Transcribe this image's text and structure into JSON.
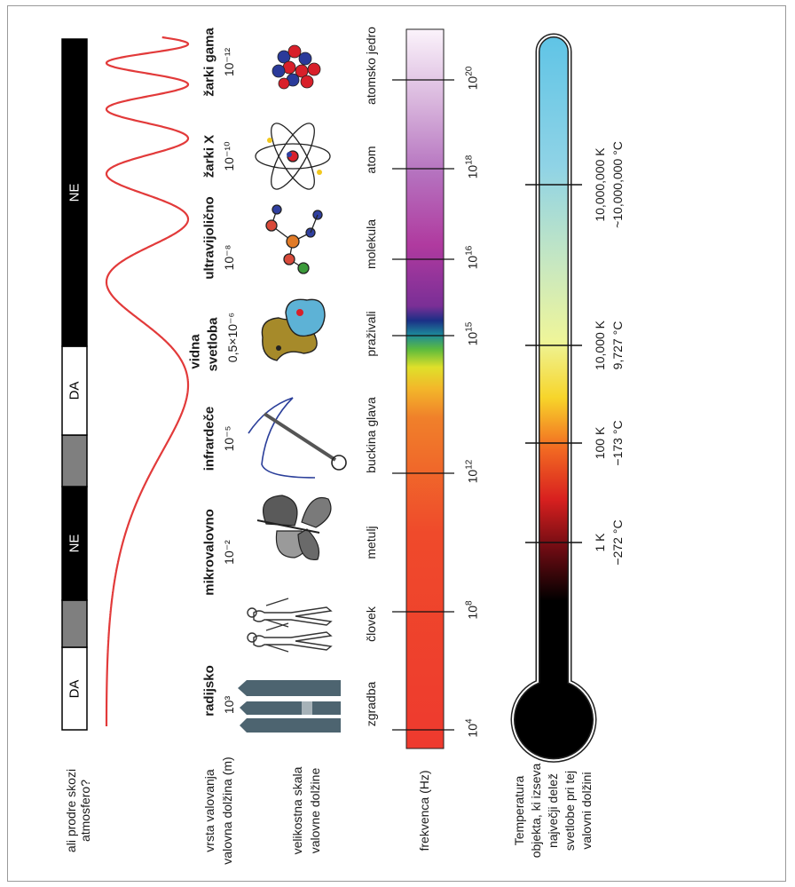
{
  "atmosphere": {
    "question": "ali prodre skozi atmosfero?",
    "segments": [
      {
        "label": "DA",
        "fill": "#ffffff",
        "text_color": "#000000"
      },
      {
        "label": "",
        "fill": "#7f7f7f",
        "text_color": "#ffffff"
      },
      {
        "label": "NE",
        "fill": "#000000",
        "text_color": "#ffffff"
      },
      {
        "label": "",
        "fill": "#7f7f7f",
        "text_color": "#ffffff"
      },
      {
        "label": "DA",
        "fill": "#ffffff",
        "text_color": "#000000"
      },
      {
        "label": "NE",
        "fill": "#000000",
        "text_color": "#ffffff"
      }
    ]
  },
  "row_labels": {
    "wave_type": "vrsta valovanja",
    "wavelength": "valovna dolžina (m)",
    "size_scale_1": "velikostna skala",
    "size_scale_2": "valovne dolžine",
    "frequency": "frekvenca (Hz)",
    "temperature_1": "Temperatura",
    "temperature_2": "objekta, ki izseva",
    "temperature_3": "največji delež",
    "temperature_4": "svetlobe pri tej",
    "temperature_5": "valovni dolžini"
  },
  "waves": [
    {
      "name": "radijsko",
      "wavelength": "10³"
    },
    {
      "name": "mikrovalovno",
      "wavelength": "10⁻²"
    },
    {
      "name": "infrardeče",
      "wavelength": "10⁻⁵"
    },
    {
      "name": "vidna",
      "name2": "svetloba",
      "wavelength": "0,5×10⁻⁶"
    },
    {
      "name": "ultravijolično",
      "wavelength": "10⁻⁸"
    },
    {
      "name": "žarki X",
      "wavelength": "10⁻¹⁰"
    },
    {
      "name": "žarki gama",
      "wavelength": "10⁻¹²"
    }
  ],
  "objects": [
    "zgradba",
    "človek",
    "metulj",
    "buckina glava",
    "praživali",
    "molekula",
    "atom",
    "atomsko jedro"
  ],
  "frequency_ticks": [
    {
      "base": "10",
      "exp": "4"
    },
    {
      "base": "10",
      "exp": "8"
    },
    {
      "base": "10",
      "exp": "12"
    },
    {
      "base": "10",
      "exp": "15"
    },
    {
      "base": "10",
      "exp": "16"
    },
    {
      "base": "10",
      "exp": "18"
    },
    {
      "base": "10",
      "exp": "20"
    }
  ],
  "temperature_ticks": [
    {
      "k": "1 K",
      "c": "−272 °C"
    },
    {
      "k": "100 K",
      "c": "−173 °C"
    },
    {
      "k": "10,000 K",
      "c": "9,727 °C"
    },
    {
      "k": "10,000,000 K",
      "c": "~10,000,000 °C"
    }
  ],
  "colors": {
    "wave": "#e23a3a",
    "building": "#4d6470",
    "thermometer_top": "#5fc4e6"
  }
}
